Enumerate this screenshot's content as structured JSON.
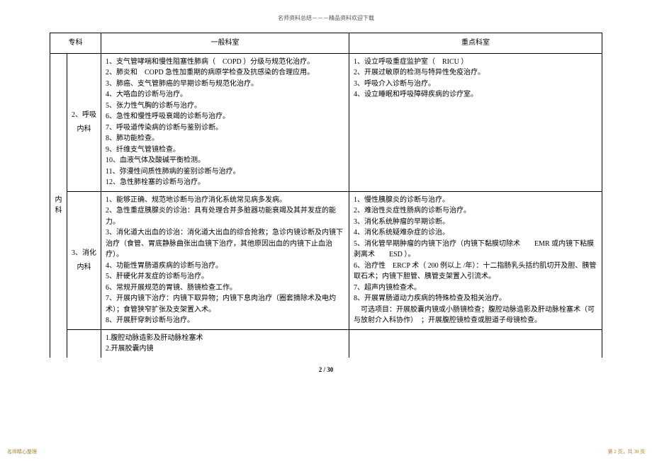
{
  "header": "名师资料总结－－－精品资料欢迎下载",
  "table": {
    "head": {
      "c1": "专科",
      "c2": "一般科室",
      "c3": "重点科室"
    },
    "rows": [
      {
        "vert": "内科",
        "sub": "2、呼吸\n内科",
        "gen": "1、支气管哮喘和慢性阻塞性肺病（　COPD ）分级与规范化治疗。\n2、肺炎和　COPD 急性加重期的病原学检查及抗感染的合理应用。\n3、肺癌、支气管肺癌的早期诊断与规范化治疗。\n4、大咯血的诊断与治疗。\n5、张力性气胸的诊断与治疗。\n6、急性和慢性呼吸衰竭的诊断与治疗。\n7、呼吸道传染病的诊断与鉴别诊断。\n8、肺功能检查。\n9、纤维支气管镜检查。\n10、血液气体及酸碱平衡检测。\n11、弥漫性间质性肺病的鉴别诊断与治疗。\n12、急性肺栓塞的诊断与治疗。",
        "key": "1、设立呼吸重症监护室（　RICU ）\n2、开展过敏原的检测与特异性免疫治疗。\n3、呼吸介入诊断与治疗。\n4、设立睡眠和呼吸障碍疾病的诊疗室。"
      },
      {
        "sub": "3、消化\n内科",
        "gen": "1、能够正确、规范地诊断与治疗消化系统常见病多发病。\n2、急性重症胰腺炎的诊治：具有处理合并多脏器功能衰竭及其并发症的能力。\n3、消化道大出血的诊治：消化道大出血的综合抢救；急诊内镜诊断及内镜下治疗（食管、胃底静脉曲张出血镜下治疗，其他原因出血的内镜下止血治疗）。\n4、功能性胃肠道疾病的诊断与治疗。\n5、肝硬化并发症的诊断与治疗。\n6、常规开展规范的胃镜、肠镜检查工作。\n7、开展内镜下治疗：内镜下取异物；内镜下息肉治疗（圈套摘除术及电灼术）；食管狭窄扩张及支架置入术。\n8、开展肝穿刺诊断与治疗。",
        "key": "1、慢性胰腺炎的诊断与治疗。\n2、难治性炎症性肠病的诊断与治疗。\n3、消化系统肿瘤的早期诊断。\n4、消化系统疑难杂症的诊治。\n5、消化管早期肿瘤的内镜下治疗（内镜下黏膜切除术　　EMR 或内镜下粘膜剥离术　　ESD ）。\n6、治疗性　ERCP 术（ 200 例以上 /年）：十二指肠乳头括约肌切开及胆、胰管取石术；内镜下胆管、胰管支架置入引流术。\n7、超声内镜检查术。\n8、开展胃肠道动力疾病的特殊检查及相关治疗。\n　可选项目：开展胶囊内镜或小肠镜检查；腹腔动脉造影及肝动脉栓塞术（可与放射介入科协作）　；开展腹腔镜检查或胆道子母镜检查。"
      },
      {
        "sub": "",
        "gen": "1.腹腔动脉造影及肝动脉栓塞术\n2.开展胶囊内镜",
        "key": ""
      }
    ]
  },
  "pagenum": "2 / 30",
  "footer_left": "名师精心整理",
  "footer_right": "第 2 页，共 30 页"
}
